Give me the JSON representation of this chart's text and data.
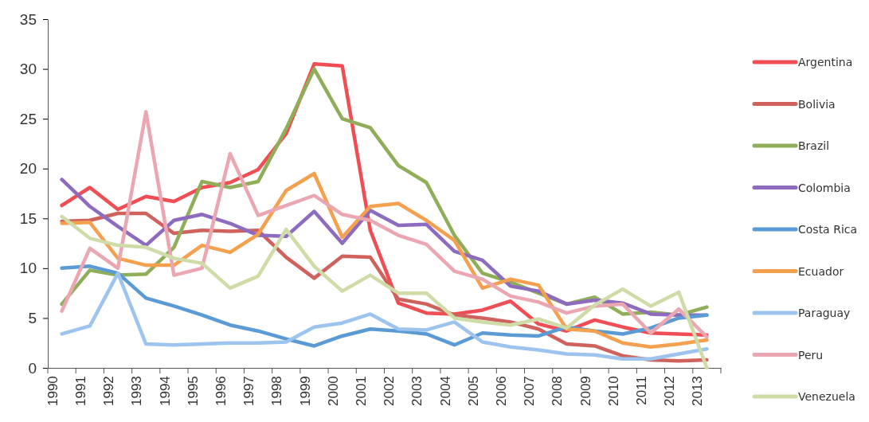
{
  "chart_data": {
    "type": "line",
    "categories": [
      "1990",
      "1991",
      "1992",
      "1993",
      "1994",
      "1995",
      "1996",
      "1997",
      "1998",
      "1999",
      "2000",
      "2001",
      "2002",
      "2003",
      "2004",
      "2005",
      "2006",
      "2007",
      "2008",
      "2009",
      "2010",
      "2011",
      "2012",
      "2013"
    ],
    "ylim": [
      0,
      35
    ],
    "yticks": [
      0,
      5,
      10,
      15,
      20,
      25,
      30,
      35
    ],
    "grid": false,
    "legend": "right",
    "marker": "none",
    "line_style": "solid",
    "series": [
      {
        "name": "Argentina",
        "color": "#f04e54",
        "values": [
          16.3,
          18.1,
          15.9,
          17.2,
          16.7,
          18.1,
          18.6,
          19.9,
          23.5,
          30.5,
          30.3,
          13.8,
          6.5,
          5.5,
          5.4,
          5.8,
          6.7,
          4.4,
          3.7,
          4.8,
          4.1,
          3.5,
          3.4,
          3.3
        ]
      },
      {
        "name": "Bolivia",
        "color": "#d0625e",
        "values": [
          14.7,
          14.8,
          15.5,
          15.5,
          13.5,
          13.8,
          13.7,
          13.8,
          11.1,
          9.0,
          11.2,
          11.1,
          6.9,
          6.4,
          5.3,
          5.0,
          4.6,
          3.9,
          2.4,
          2.2,
          1.2,
          0.8,
          0.7,
          0.8
        ]
      },
      {
        "name": "Brazil",
        "color": "#8fae5a",
        "values": [
          6.4,
          9.8,
          9.3,
          9.4,
          12.1,
          18.7,
          18.1,
          18.7,
          24.0,
          30.0,
          25.0,
          24.1,
          20.3,
          18.6,
          13.3,
          9.5,
          8.6,
          7.5,
          6.4,
          7.1,
          5.4,
          5.6,
          5.3,
          6.1
        ]
      },
      {
        "name": "Colombia",
        "color": "#8d6bbf",
        "values": [
          18.9,
          16.2,
          14.2,
          12.3,
          14.8,
          15.4,
          14.5,
          13.3,
          13.2,
          15.7,
          12.5,
          15.8,
          14.3,
          14.4,
          11.7,
          10.8,
          8.2,
          7.7,
          6.4,
          6.8,
          6.5,
          5.4,
          5.3,
          5.3
        ]
      },
      {
        "name": "Costa Rica",
        "color": "#5b9bd5",
        "values": [
          10.0,
          10.2,
          9.5,
          7.0,
          6.2,
          5.3,
          4.3,
          3.7,
          2.9,
          2.2,
          3.2,
          3.9,
          3.7,
          3.4,
          2.3,
          3.5,
          3.3,
          3.2,
          4.1,
          3.7,
          3.4,
          4.0,
          5.0,
          5.3
        ]
      },
      {
        "name": "Ecuador",
        "color": "#f4a04e",
        "values": [
          14.5,
          14.6,
          11.0,
          10.3,
          10.3,
          12.3,
          11.6,
          13.4,
          17.8,
          19.5,
          13.1,
          16.2,
          16.5,
          14.8,
          12.8,
          8.0,
          8.9,
          8.3,
          3.9,
          3.7,
          2.5,
          2.1,
          2.4,
          2.8
        ]
      },
      {
        "name": "Paraguay",
        "color": "#9dc3ef",
        "values": [
          3.4,
          4.2,
          9.5,
          2.4,
          2.3,
          2.4,
          2.5,
          2.5,
          2.6,
          4.1,
          4.5,
          5.4,
          3.9,
          3.8,
          4.6,
          2.6,
          2.1,
          1.8,
          1.4,
          1.3,
          0.9,
          0.9,
          1.4,
          1.9
        ]
      },
      {
        "name": "Peru",
        "color": "#eba7b1",
        "values": [
          5.7,
          12.0,
          10.0,
          25.7,
          9.3,
          10.0,
          21.5,
          15.3,
          16.3,
          17.3,
          15.4,
          14.8,
          13.3,
          12.4,
          9.7,
          8.9,
          7.2,
          6.6,
          5.5,
          6.2,
          6.4,
          3.5,
          5.9,
          3.1
        ]
      },
      {
        "name": "Venezuela",
        "color": "#cfdca8",
        "values": [
          15.2,
          13.0,
          12.3,
          12.1,
          11.0,
          10.5,
          8.0,
          9.2,
          13.9,
          10.2,
          7.7,
          9.3,
          7.5,
          7.5,
          5.0,
          4.6,
          4.3,
          4.9,
          4.0,
          6.3,
          7.9,
          6.2,
          7.6,
          0
        ]
      }
    ]
  }
}
